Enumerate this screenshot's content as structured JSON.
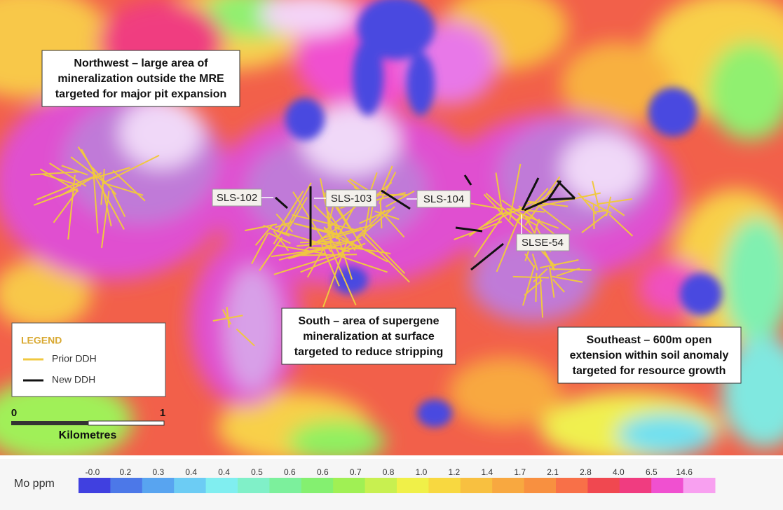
{
  "callouts": {
    "northwest": {
      "lines": [
        "Northwest – large area of",
        "mineralization outside the MRE",
        "targeted for major pit expansion"
      ]
    },
    "south": {
      "lines": [
        "South – area of supergene",
        "mineralization at surface",
        "targeted to reduce stripping"
      ]
    },
    "southeast": {
      "lines": [
        "Southeast – 600m open",
        "extension within soil anomaly",
        "targeted for resource growth"
      ]
    }
  },
  "holes": [
    "SLS-102",
    "SLS-103",
    "SLS-104",
    "SLSE-54"
  ],
  "legend": {
    "title": "LEGEND",
    "items": [
      "Prior DDH",
      "New DDH"
    ]
  },
  "scale": {
    "start": "0",
    "end": "1",
    "unit": "Kilometres"
  },
  "colorbar": {
    "title": "Mo ppm",
    "labels": [
      "-0.0",
      "0.2",
      "0.3",
      "0.4",
      "0.4",
      "0.5",
      "0.6",
      "0.6",
      "0.7",
      "0.8",
      "1.0",
      "1.2",
      "1.4",
      "1.7",
      "2.1",
      "2.8",
      "4.0",
      "6.5",
      "14.6"
    ],
    "colors": [
      "#4040e0",
      "#4c78e8",
      "#58a4f0",
      "#6cccf4",
      "#80eef0",
      "#80f0c8",
      "#7cf09c",
      "#84f070",
      "#a0f054",
      "#c8f050",
      "#f0f048",
      "#f8d840",
      "#f8c040",
      "#f8a840",
      "#f89040",
      "#f87048",
      "#f04850",
      "#f03c80",
      "#f050d0",
      "#f8a0f0"
    ]
  }
}
